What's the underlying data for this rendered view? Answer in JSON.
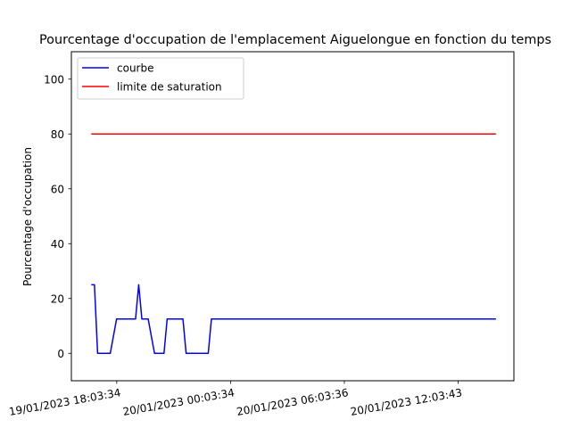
{
  "chart_data": {
    "type": "line",
    "title": "Pourcentage d'occupation de l'emplacement Aiguelongue en fonction du temps",
    "xlabel": "",
    "ylabel": "Pourcentage d'occupation",
    "ylim": [
      -10,
      110
    ],
    "xlim": [
      "19/01/2023 15:40:00",
      "20/01/2023 15:00:00"
    ],
    "y_ticks": [
      0,
      20,
      40,
      60,
      80,
      100
    ],
    "x_ticks": [
      {
        "date": "19/01/2023 18:03:34",
        "label": "19/01/2023 18:03:34"
      },
      {
        "date": "20/01/2023 00:03:34",
        "label": "20/01/2023 00:03:34"
      },
      {
        "date": "20/01/2023 06:03:36",
        "label": "20/01/2023 06:03:36"
      },
      {
        "date": "20/01/2023 12:03:43",
        "label": "20/01/2023 12:03:43"
      }
    ],
    "grid": false,
    "legend_position": "upper-left",
    "series": [
      {
        "name": "courbe",
        "color": "#0000ff",
        "points": [
          [
            "19/01/2023 16:43:00",
            25
          ],
          [
            "19/01/2023 16:53:00",
            25
          ],
          [
            "19/01/2023 17:03:00",
            0
          ],
          [
            "19/01/2023 17:43:00",
            0
          ],
          [
            "19/01/2023 18:03:00",
            12.5
          ],
          [
            "19/01/2023 19:03:00",
            12.5
          ],
          [
            "19/01/2023 19:13:00",
            25
          ],
          [
            "19/01/2023 19:23:00",
            12.5
          ],
          [
            "19/01/2023 19:43:00",
            12.5
          ],
          [
            "19/01/2023 20:03:00",
            0
          ],
          [
            "19/01/2023 20:33:00",
            0
          ],
          [
            "19/01/2023 20:43:00",
            12.5
          ],
          [
            "19/01/2023 21:33:00",
            12.5
          ],
          [
            "19/01/2023 21:43:00",
            0
          ],
          [
            "19/01/2023 22:53:00",
            0
          ],
          [
            "19/01/2023 23:03:00",
            12.5
          ],
          [
            "20/01/2023 14:03:00",
            12.5
          ]
        ]
      },
      {
        "name": "limite de saturation",
        "color": "#ff0000",
        "points": [
          [
            "19/01/2023 16:43:00",
            80
          ],
          [
            "20/01/2023 14:03:00",
            80
          ]
        ]
      }
    ]
  }
}
